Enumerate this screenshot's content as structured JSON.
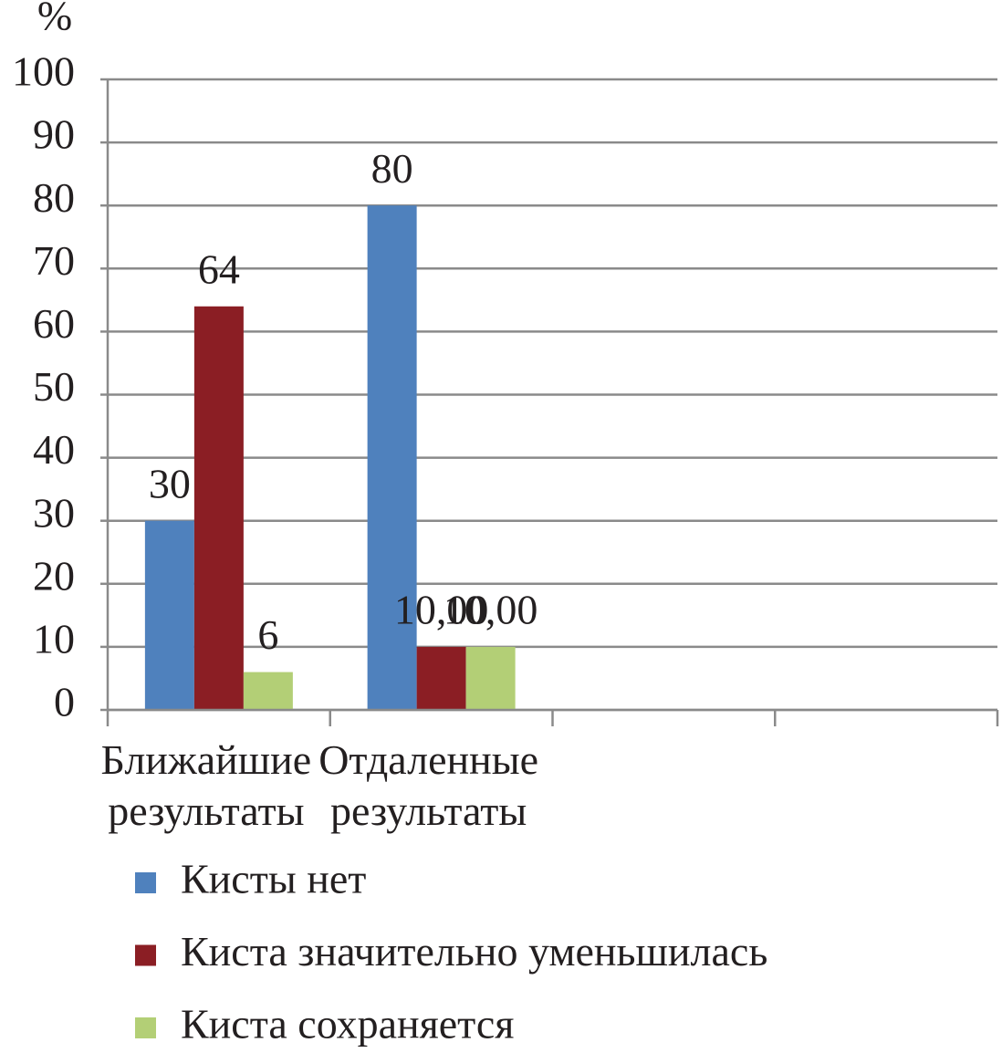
{
  "chart_data": {
    "type": "bar",
    "y_label": "%",
    "categories": [
      "Ближайшие результаты",
      "Отдаленные результаты",
      null,
      null
    ],
    "series": [
      {
        "name": "Кисты нет",
        "color": "#4f81bd",
        "values": [
          30,
          80,
          null,
          null
        ]
      },
      {
        "name": "Киста значительно уменьшилась",
        "color": "#8b1e24",
        "values": [
          64,
          10,
          null,
          null
        ],
        "value_labels": [
          "64",
          "10,00",
          null,
          null
        ]
      },
      {
        "name": "Киста сохраняется",
        "color": "#b3cf76",
        "values": [
          6,
          10,
          null,
          null
        ],
        "value_labels": [
          "6",
          "10,00",
          null,
          null
        ]
      }
    ],
    "ylim": [
      0,
      100
    ],
    "yticks": [
      0,
      10,
      20,
      30,
      40,
      50,
      60,
      70,
      80,
      90,
      100
    ],
    "grid": true,
    "legend": "bottom"
  }
}
